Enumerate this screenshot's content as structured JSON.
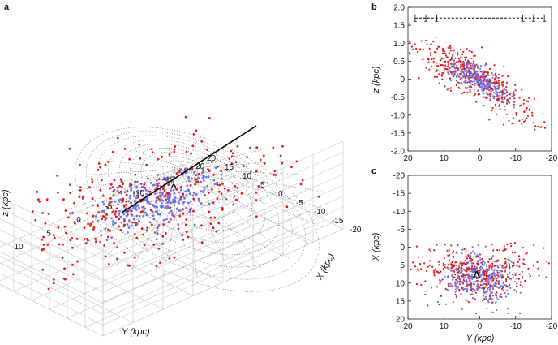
{
  "panels": {
    "a": {
      "label": "a"
    },
    "b": {
      "label": "b"
    },
    "c": {
      "label": "c"
    }
  },
  "colors": {
    "red_series": "#e01b1b",
    "blue_series": "#6b74e8",
    "mesh": "#444444",
    "grid": "#c8c8c8",
    "line": "#000000"
  },
  "chart_data": [
    {
      "id": "a",
      "type": "scatter",
      "projection": "3d",
      "zlabel": "z (kpc)",
      "xlabel": "X (kpc)",
      "ylabel": "Y (kpc)",
      "z_ticks": [
        "-2.0",
        "-1.5",
        "-1.0",
        "-0.5",
        "0",
        "0.5",
        "1.0",
        "1.5",
        "2.0"
      ],
      "x_ticks": [
        "-20",
        "-15",
        "-10",
        "-5",
        "0",
        "5",
        "10",
        "15",
        "20"
      ],
      "y_ticks": [
        "20",
        "15",
        "10",
        "5",
        "0",
        "-5",
        "-10",
        "-15",
        "-20"
      ],
      "xlim": [
        -20,
        20
      ],
      "ylim": [
        -20,
        20
      ],
      "zlim": [
        -2,
        2
      ],
      "grid": true,
      "series": [
        {
          "color": "red",
          "marker": "dot"
        },
        {
          "color": "blue",
          "marker": "dot"
        }
      ],
      "annotations": [
        "^"
      ]
    },
    {
      "id": "b",
      "type": "scatter",
      "ylabel": "z (kpc)",
      "x_ticks": [
        "20",
        "10",
        "0",
        "-10",
        "-20"
      ],
      "y_ticks": [
        "-2.0",
        "-1.5",
        "-1.0",
        "-0.5",
        "0",
        "0.5",
        "1.0",
        "1.5",
        "2.0"
      ],
      "xlim": [
        20,
        -20
      ],
      "ylim": [
        -2,
        2
      ],
      "grid": false,
      "errorbar_row": {
        "z": 1.7,
        "x": [
          18,
          15,
          12,
          -12,
          -15,
          -18
        ]
      },
      "series": [
        {
          "color": "red",
          "marker": "dot"
        },
        {
          "color": "blue",
          "marker": "dot"
        }
      ]
    },
    {
      "id": "c",
      "type": "scatter",
      "xlabel": "Y (kpc)",
      "ylabel": "X (kpc)",
      "x_ticks": [
        "20",
        "10",
        "0",
        "-10",
        "-20"
      ],
      "y_ticks": [
        "-20",
        "-15",
        "-10",
        "-5",
        "0",
        "5",
        "10",
        "15",
        "20"
      ],
      "xlim": [
        20,
        -20
      ],
      "ylim": [
        -20,
        20
      ],
      "grid": false,
      "annotations": [
        "Δ"
      ],
      "series": [
        {
          "color": "red",
          "marker": "dot"
        },
        {
          "color": "blue",
          "marker": "dot"
        }
      ]
    }
  ]
}
